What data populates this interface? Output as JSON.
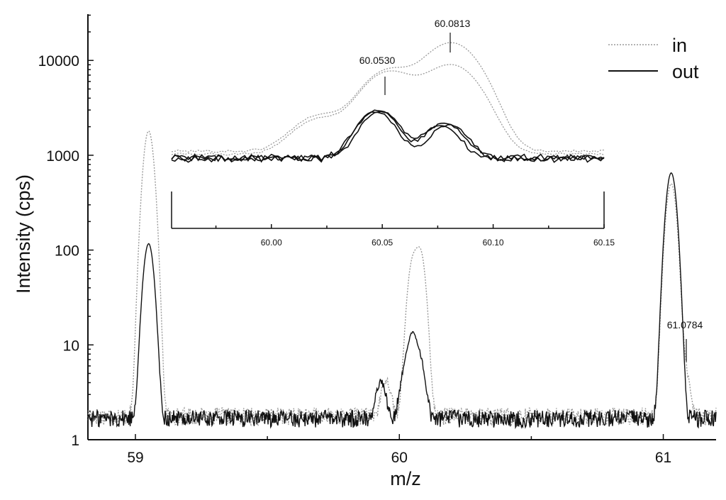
{
  "chart_data": [
    {
      "type": "line",
      "xlabel": "m/z",
      "ylabel": "Intensity (cps)",
      "xlim": [
        58.82,
        61.2
      ],
      "ylim": [
        1,
        30000
      ],
      "yscale": "log",
      "x_ticks": [
        59,
        60,
        61
      ],
      "x_tick_labels": [
        "59",
        "60",
        "61"
      ],
      "y_ticks": [
        1,
        10,
        100,
        1000,
        10000
      ],
      "y_tick_labels": [
        "1",
        "10",
        "100",
        "1000",
        "10000"
      ],
      "legend": {
        "position": "top-right",
        "entries": [
          {
            "label": "in",
            "style": "dotted",
            "color": "#9a9a9a"
          },
          {
            "label": "out",
            "style": "solid",
            "color": "#111111"
          }
        ]
      },
      "series": [
        {
          "name": "in",
          "style": "dotted",
          "color": "#9a9a9a",
          "baseline": 1.8,
          "peaks": [
            {
              "x": 59.05,
              "y": 1800
            },
            {
              "x": 59.95,
              "y": 2.5
            },
            {
              "x": 60.05,
              "y": 70
            },
            {
              "x": 60.08,
              "y": 90
            },
            {
              "x": 61.03,
              "y": 500
            },
            {
              "x": 61.08,
              "y": 4
            }
          ]
        },
        {
          "name": "out",
          "style": "solid",
          "color": "#111111",
          "baseline": 1.7,
          "peaks": [
            {
              "x": 59.05,
              "y": 115
            },
            {
              "x": 59.93,
              "y": 2.4
            },
            {
              "x": 60.02,
              "y": 3.2
            },
            {
              "x": 60.05,
              "y": 10.5
            },
            {
              "x": 60.08,
              "y": 4.5
            },
            {
              "x": 61.03,
              "y": 650
            }
          ]
        }
      ],
      "annotations": [
        {
          "text": "61.0784",
          "x": 61.0784
        }
      ]
    },
    {
      "type": "line",
      "role": "inset",
      "xlim": [
        59.955,
        60.15
      ],
      "x_ticks": [
        60.0,
        60.05,
        60.1,
        60.15
      ],
      "x_tick_labels": [
        "60.00",
        "60.05",
        "60.10",
        "60.15"
      ],
      "series": [
        {
          "name": "in",
          "style": "dotted",
          "color": "#9a9a9a",
          "baseline": 330,
          "peaks": [
            {
              "x": 60.022,
              "y": 700
            },
            {
              "x": 60.053,
              "y": 4000
            },
            {
              "x": 60.0813,
              "y": 10000
            }
          ]
        },
        {
          "name": "in",
          "style": "dotted",
          "color": "#9a9a9a",
          "baseline": 300,
          "peaks": [
            {
              "x": 60.022,
              "y": 620
            },
            {
              "x": 60.053,
              "y": 3800
            },
            {
              "x": 60.0813,
              "y": 4800
            }
          ]
        },
        {
          "name": "out",
          "style": "solid",
          "color": "#111111",
          "baseline": 270,
          "peaks": [
            {
              "x": 60.048,
              "y": 950
            },
            {
              "x": 60.078,
              "y": 540
            }
          ]
        },
        {
          "name": "out",
          "style": "solid",
          "color": "#111111",
          "baseline": 265,
          "peaks": [
            {
              "x": 60.047,
              "y": 900
            },
            {
              "x": 60.08,
              "y": 500
            }
          ]
        },
        {
          "name": "out",
          "style": "solid",
          "color": "#111111",
          "baseline": 260,
          "peaks": [
            {
              "x": 60.049,
              "y": 920
            },
            {
              "x": 60.076,
              "y": 480
            }
          ]
        }
      ],
      "annotations": [
        {
          "text": "60.0530",
          "x": 60.053
        },
        {
          "text": "60.0813",
          "x": 60.0813
        }
      ]
    }
  ]
}
